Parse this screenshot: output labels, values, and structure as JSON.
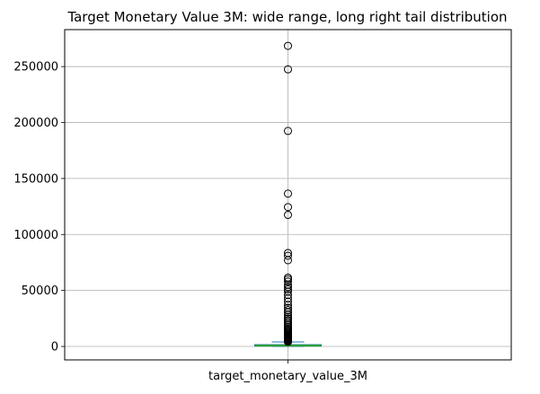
{
  "chart_data": {
    "type": "box",
    "title": "Target Monetary Value 3M: wide range, long right tail distribution",
    "categories": [
      "target_monetary_value_3M"
    ],
    "ylim": [
      -12000,
      283000
    ],
    "yticks": [
      0,
      50000,
      100000,
      150000,
      200000,
      250000
    ],
    "grid": true,
    "box": {
      "whisker_low": 0,
      "q1": 300,
      "median": 700,
      "q3": 1600,
      "whisker_high": 4000
    },
    "outliers": [
      4200,
      4500,
      4800,
      5100,
      5500,
      5900,
      6300,
      6800,
      7300,
      7800,
      8400,
      9000,
      9700,
      10500,
      11300,
      12200,
      13000,
      14000,
      15000,
      16200,
      17500,
      19000,
      20500,
      22000,
      23500,
      25000,
      26500,
      28500,
      30500,
      32500,
      34500,
      37000,
      40000,
      43000,
      46000,
      49000,
      51000,
      53000,
      55000,
      58000,
      60000,
      61500,
      77000,
      81000,
      83500,
      117500,
      124500,
      136500,
      192500,
      247500,
      268500
    ],
    "colors": {
      "box": "#1f77b4",
      "median": "#2ca02c",
      "outlier_edge": "#000000",
      "grid": "#b0b0b0",
      "axes": "#000000"
    }
  }
}
